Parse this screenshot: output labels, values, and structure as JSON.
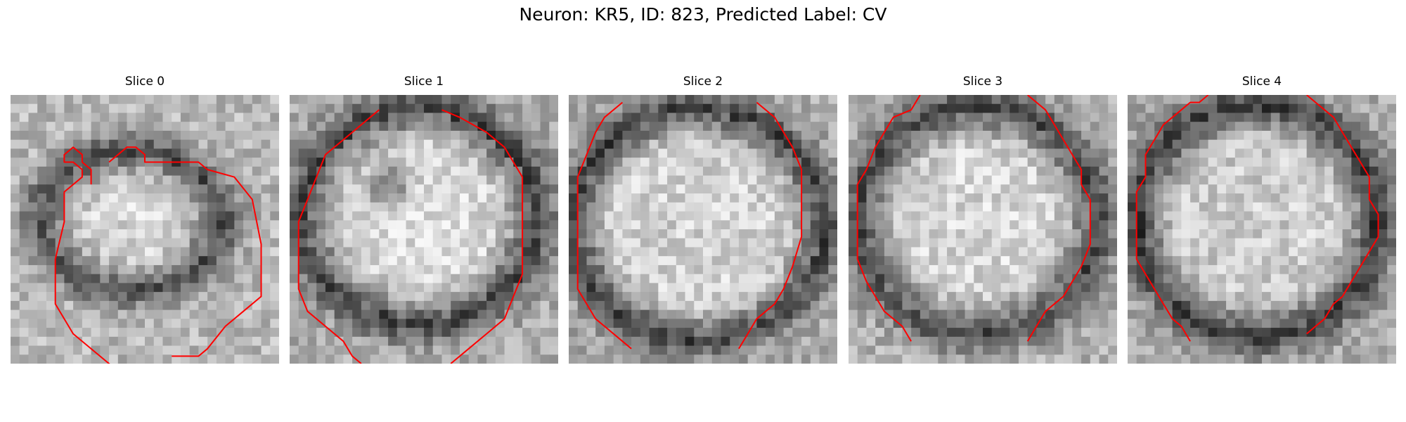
{
  "figure": {
    "title": "Neuron: KR5, ID: 823, Predicted Label: CV"
  },
  "panels": [
    {
      "title": "Slice 0"
    },
    {
      "title": "Slice 1"
    },
    {
      "title": "Slice 2"
    },
    {
      "title": "Slice 3"
    },
    {
      "title": "Slice 4"
    }
  ],
  "colors": {
    "contour": "#ff0000",
    "background": "#ffffff"
  }
}
